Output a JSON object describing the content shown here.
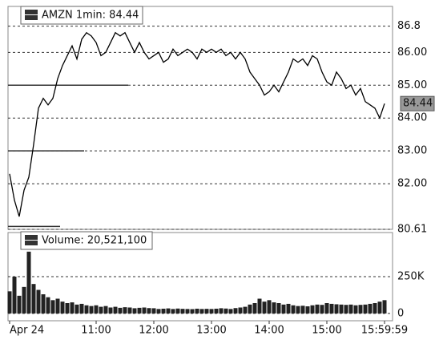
{
  "chart_data": [
    {
      "type": "line",
      "title": "AMZN 1min: 84.44",
      "categories": [
        "Apr 24",
        null,
        null,
        null,
        null,
        null,
        null,
        null,
        null,
        null,
        null,
        null,
        null,
        null,
        null,
        null,
        null,
        null,
        "11:00",
        null,
        null,
        null,
        null,
        null,
        null,
        null,
        null,
        null,
        null,
        null,
        "12:00",
        null,
        null,
        null,
        null,
        null,
        null,
        null,
        null,
        null,
        null,
        null,
        "13:00",
        null,
        null,
        null,
        null,
        null,
        null,
        null,
        null,
        null,
        null,
        null,
        "14:00",
        null,
        null,
        null,
        null,
        null,
        null,
        null,
        null,
        null,
        null,
        null,
        "15:00",
        null,
        null,
        null,
        null,
        null,
        null,
        null,
        null,
        null,
        null,
        null,
        "15:59:59"
      ],
      "series": [
        {
          "color": "#000000",
          "values": [
            82.3,
            81.5,
            81.0,
            81.8,
            82.2,
            83.2,
            84.3,
            84.6,
            84.4,
            84.6,
            85.2,
            85.6,
            85.9,
            86.2,
            85.8,
            86.4,
            86.6,
            86.5,
            86.3,
            85.9,
            86.0,
            86.3,
            86.6,
            86.5,
            86.6,
            86.3,
            86.0,
            86.3,
            86.0,
            85.8,
            85.9,
            86.0,
            85.7,
            85.8,
            86.1,
            85.9,
            86.0,
            86.1,
            86.0,
            85.8,
            86.1,
            86.0,
            86.1,
            86.0,
            86.1,
            85.9,
            86.0,
            85.8,
            86.0,
            85.8,
            85.4,
            85.2,
            85.0,
            84.7,
            84.8,
            85.0,
            84.8,
            85.1,
            85.4,
            85.8,
            85.7,
            85.8,
            85.6,
            85.9,
            85.8,
            85.4,
            85.1,
            85.0,
            85.4,
            85.2,
            84.9,
            85.0,
            84.7,
            84.9,
            84.5,
            84.4,
            84.3,
            84.0,
            84.44
          ]
        }
      ],
      "last_price": 84.44,
      "reference_lines": [
        85,
        83,
        80.7
      ],
      "ylim": [
        80.61,
        87.4
      ],
      "yticks": [
        80.61,
        {
          "value": 82,
          "label": "82.00"
        },
        {
          "value": 83,
          "label": "83.00"
        },
        {
          "value": 84,
          "label": "84.00"
        },
        {
          "value": 85,
          "label": "85.00"
        },
        {
          "value": 86,
          "label": "86.00"
        },
        86.8
      ],
      "grid": true
    },
    {
      "type": "bar",
      "title": "Volume: 20,521,100",
      "color": "#222222",
      "values": [
        150000,
        250000,
        120000,
        180000,
        420000,
        200000,
        160000,
        130000,
        110000,
        90000,
        100000,
        80000,
        70000,
        75000,
        60000,
        65000,
        55000,
        50000,
        55000,
        45000,
        50000,
        40000,
        45000,
        38000,
        42000,
        40000,
        35000,
        38000,
        40000,
        36000,
        35000,
        30000,
        32000,
        34000,
        30000,
        33000,
        31000,
        30000,
        29000,
        32000,
        30000,
        31000,
        30000,
        32000,
        35000,
        33000,
        30000,
        36000,
        40000,
        45000,
        60000,
        70000,
        100000,
        80000,
        90000,
        75000,
        70000,
        60000,
        65000,
        55000,
        50000,
        52000,
        48000,
        55000,
        60000,
        58000,
        70000,
        65000,
        62000,
        60000,
        58000,
        60000,
        55000,
        58000,
        60000,
        65000,
        70000,
        80000,
        90000
      ],
      "ylim": [
        -50000,
        550000
      ],
      "yticks": [
        {
          "value": 250000,
          "label": "250K"
        },
        0
      ],
      "grid": true
    }
  ]
}
